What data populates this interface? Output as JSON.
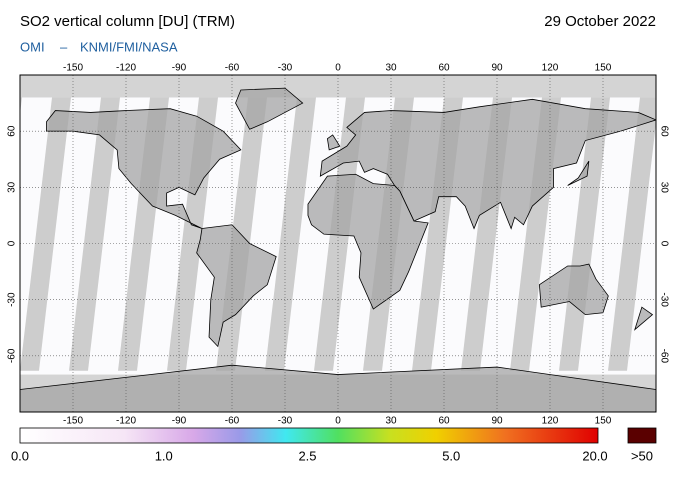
{
  "header": {
    "title": "SO2 vertical column [DU] (TRM)",
    "date": "29 October 2022",
    "source": {
      "instrument": "OMI",
      "separator": "–",
      "agencies": "KNMI/FMI/NASA"
    }
  },
  "map": {
    "lon_ticks": [
      -150,
      -120,
      -90,
      -60,
      -30,
      0,
      30,
      60,
      90,
      120,
      150
    ],
    "lat_ticks": [
      60,
      30,
      0,
      -30,
      -60
    ]
  },
  "colorbar": {
    "labels": [
      "0.0",
      "1.0",
      "2.5",
      "5.0",
      "20.0"
    ],
    "overflow_label": ">50"
  }
}
